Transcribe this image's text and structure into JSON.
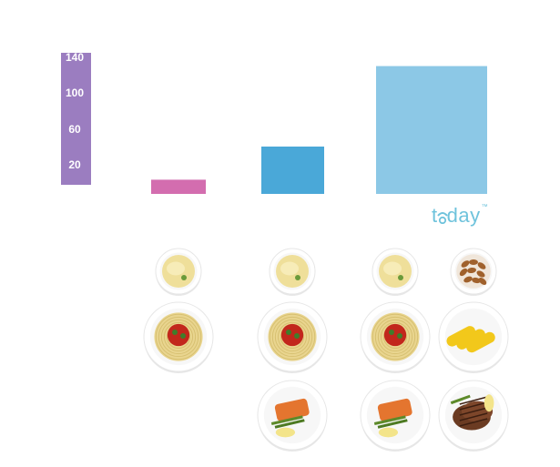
{
  "chart_data": {
    "type": "bar",
    "categories": [
      "",
      "",
      ""
    ],
    "values": [
      15,
      50,
      135
    ],
    "colors": [
      "#d36daf",
      "#4aa8d8",
      "#8cc8e6"
    ],
    "axis": {
      "ticks": [
        20,
        60,
        100,
        140
      ],
      "color": "#9b7dc0",
      "ylim": [
        0,
        140
      ]
    }
  },
  "logo": {
    "text_before": "t",
    "text_after": "day",
    "mark": "™"
  },
  "food_columns": [
    [
      "mashed-potatoes-icon",
      "spaghetti-icon"
    ],
    [
      "mashed-potatoes-icon",
      "spaghetti-icon",
      "salmon-asparagus-icon"
    ],
    [
      "mashed-potatoes-icon",
      "spaghetti-icon",
      "salmon-asparagus-icon"
    ],
    [
      "almonds-icon",
      "corn-icon",
      "steak-asparagus-icon"
    ]
  ]
}
